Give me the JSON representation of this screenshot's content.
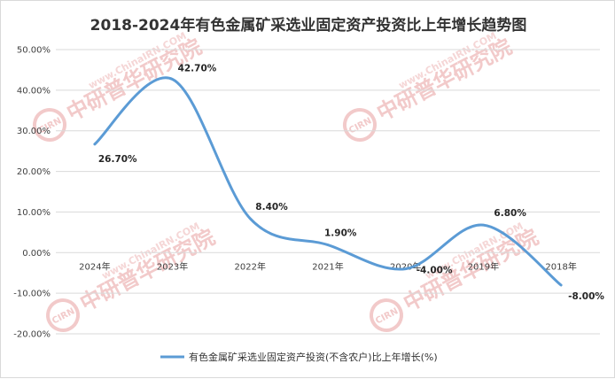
{
  "colors": {
    "series": "#5b9bd5",
    "grid": "#d9d9d9",
    "text": "#404040",
    "watermark": "#f2caca"
  },
  "watermark": {
    "brand": "中研普华研究院",
    "url": "www.ChinaIRN.COM",
    "logo": "CIRN"
  },
  "chart_data": {
    "type": "line",
    "title": "2018-2024年有色金属矿采选业固定资产投资比上年增长趋势图",
    "categories": [
      "2024年",
      "2023年",
      "2022年",
      "2021年",
      "2020年",
      "2019年",
      "2018年"
    ],
    "series": [
      {
        "name": "有色金属矿采选业固定资产投资(不含农户)比上年增长(%)",
        "values": [
          26.7,
          42.7,
          8.4,
          1.9,
          -4.0,
          6.8,
          -8.0
        ],
        "labels": [
          "26.70%",
          "42.70%",
          "8.40%",
          "1.90%",
          "-4.00%",
          "6.80%",
          "-8.00%"
        ]
      }
    ],
    "y_ticks": [
      "50.00%",
      "40.00%",
      "30.00%",
      "20.00%",
      "10.00%",
      "0.00%",
      "-10.00%",
      "-20.00%"
    ],
    "ylim": [
      -20,
      50
    ],
    "grid": true,
    "legend_position": "bottom",
    "smooth": true
  }
}
